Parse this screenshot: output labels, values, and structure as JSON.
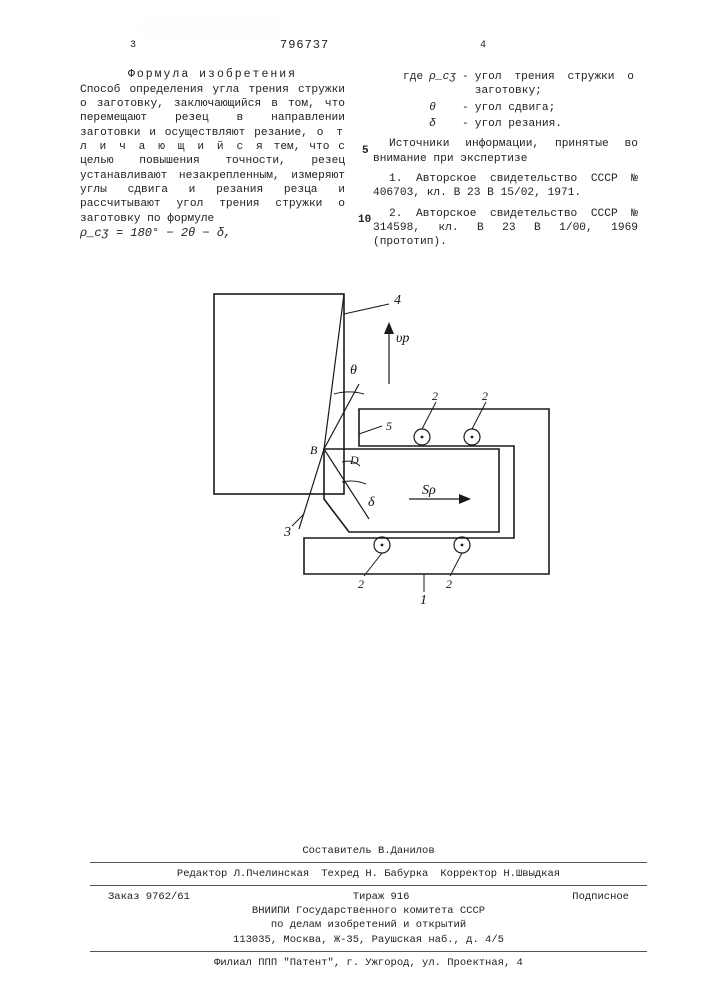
{
  "doc_number": "796737",
  "col_left_num": "3",
  "col_right_num": "4",
  "line_mark_5": "5",
  "line_mark_10": "10",
  "left_col": {
    "heading": "Формула  изобретения",
    "para": "Способ определения угла трения стружки о заготовку, заключающийся в том, что перемещают резец в направлении заготовки и осуществляют резание,",
    "para_spaced": "о т л и ч а ю щ и й с я",
    "para_cont": " тем, что с целью повышения точности, резец устанавливают незакрепленным, измеряют углы сдвига и резания резца и рассчитывают угол трения стружки о заготовку по формуле",
    "formula": "ρ_cʒ = 180° − 2θ − δ,"
  },
  "right_col": {
    "where": "где",
    "rho_label": "ρ_cʒ",
    "rho_def": "угол трения стружки о заготовку;",
    "theta_label": "θ",
    "theta_def": "угол сдвига;",
    "delta_label": "δ",
    "delta_def": "угол резания.",
    "sources_heading": "Источники информации, принятые во внимание при экспертизе",
    "src1": "1. Авторское свидетельство СССР № 406703, кл. B 23 B 15/02, 1971.",
    "src2": "2. Авторское свидетельство СССР № 314598, кл. B 23 B 1/00, 1969 (прототип)."
  },
  "figure": {
    "labels": {
      "l1": "1",
      "l2": "2",
      "l3": "3",
      "l4": "4",
      "l5": "5"
    },
    "symbols": {
      "theta": "θ",
      "delta": "δ",
      "vp": "υp",
      "sp": "Sρ",
      "D": "D",
      "B": "B"
    },
    "stroke": "#1a1a1a",
    "stroke_width": 1.6,
    "stroke_width_light": 1.2,
    "font_size": 14,
    "font_size_small": 12
  },
  "footer": {
    "compiler": "Составитель В.Данилов",
    "editor": "Редактор Л.Пчелинская",
    "tech": "Техред Н. Бабурка",
    "corrector": "Корректор Н.Швыдкая",
    "order": "Заказ 9762/61",
    "tirazh": "Тираж 916",
    "podpis": "Подписное",
    "org1": "ВНИИПИ Государственного комитета СССР",
    "org2": "по делам изобретений и открытий",
    "addr": "113035, Москва, Ж-35, Раушская наб., д. 4/5",
    "filial": "Филиал ППП \"Патент\", г. Ужгород, ул. Проектная, 4"
  }
}
